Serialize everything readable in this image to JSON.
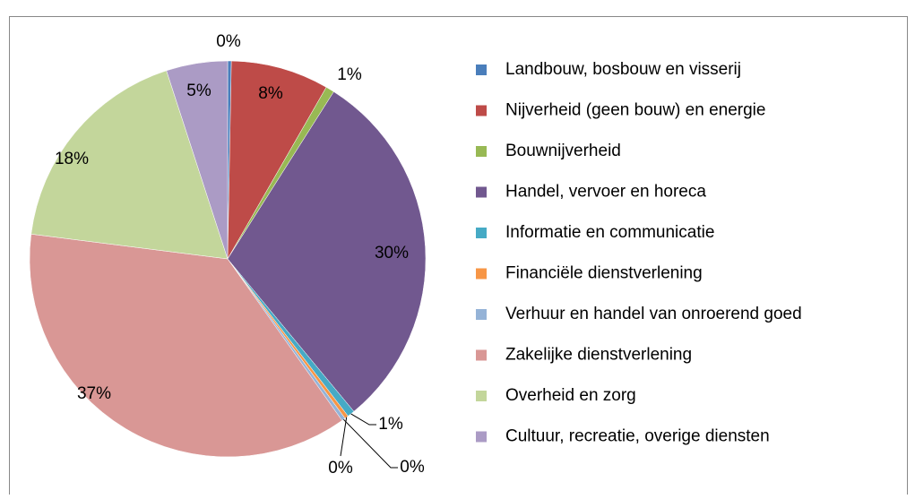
{
  "chart_data": {
    "type": "pie",
    "categories": [
      "Landbouw, bosbouw en visserij",
      "Nijverheid (geen bouw) en energie",
      "Bouwnijverheid",
      "Handel, vervoer en horeca",
      "Informatie en communicatie",
      "Financiële dienstverlening",
      "Verhuur en handel van onroerend goed",
      "Zakelijke dienstverlening",
      "Overheid en zorg",
      "Cultuur, recreatie, overige diensten"
    ],
    "values": [
      0.3,
      8,
      0.7,
      30,
      0.6,
      0.3,
      0.3,
      36.8,
      18,
      5
    ],
    "value_labels": [
      "0%",
      "8%",
      "1%",
      "30%",
      "1%",
      "0%",
      "0%",
      "37%",
      "18%",
      "5%"
    ],
    "colors": [
      "#4a7ebb",
      "#be4b48",
      "#98b954",
      "#71588f",
      "#46aac5",
      "#f79646",
      "#95b3d7",
      "#d99795",
      "#c3d69b",
      "#ab9bc5"
    ],
    "legend": "right"
  }
}
